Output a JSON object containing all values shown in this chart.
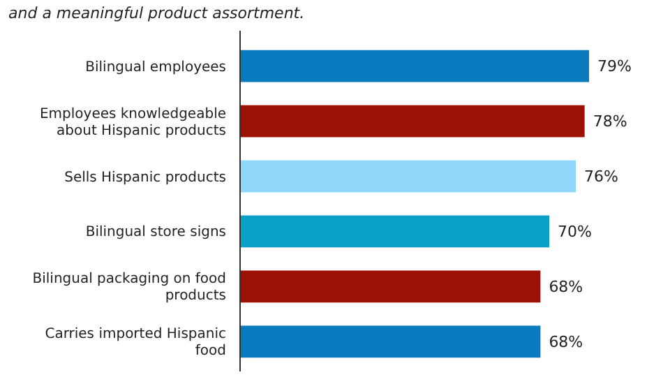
{
  "chart_data": {
    "type": "bar",
    "orientation": "horizontal",
    "title": "and a meaningful product assortment.",
    "categories": [
      "Bilingual employees",
      "Employees knowledgeable about Hispanic products",
      "Sells Hispanic products",
      "Bilingual store signs",
      "Bilingual packaging on food products",
      "Carries imported Hispanic food"
    ],
    "values": [
      79,
      78,
      76,
      70,
      68,
      68
    ],
    "colors": [
      "#0a7abf",
      "#9b1106",
      "#8fd8fb",
      "#0aa0c8",
      "#9b1106",
      "#0a7abf"
    ],
    "value_labels": [
      "79%",
      "78%",
      "76%",
      "70%",
      "68%",
      "68%"
    ]
  }
}
